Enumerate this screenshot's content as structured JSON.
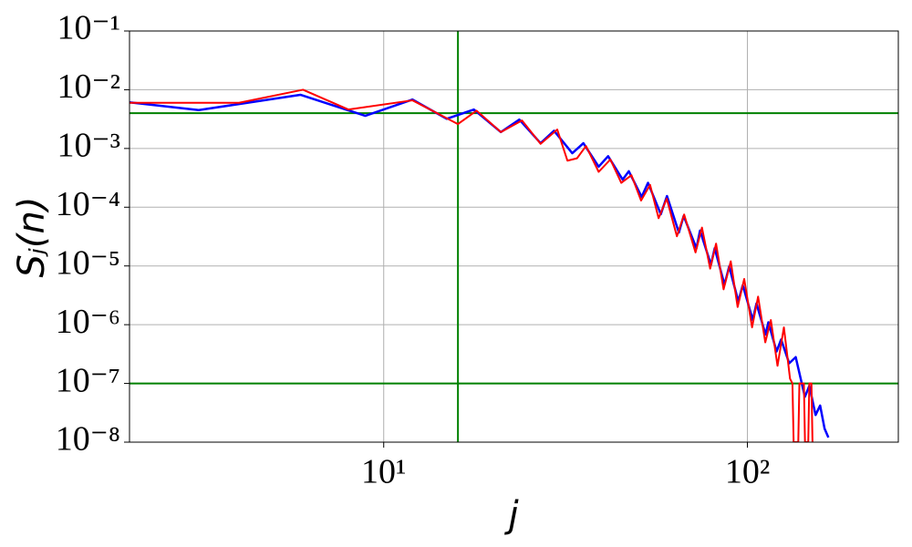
{
  "chart_data": {
    "type": "line",
    "xlabel": "j",
    "ylabel": "Sⱼ(n)",
    "xscale": "log",
    "yscale": "log",
    "grid": true,
    "xlim": [
      2,
      260
    ],
    "ylim": [
      1e-08,
      0.1
    ],
    "xticks": [
      {
        "value": 10,
        "label": "10¹"
      },
      {
        "value": 100,
        "label": "10²"
      }
    ],
    "yticks": [
      {
        "value": 1e-08,
        "label": "10⁻⁸"
      },
      {
        "value": 1e-07,
        "label": "10⁻⁷"
      },
      {
        "value": 1e-06,
        "label": "10⁻⁶"
      },
      {
        "value": 1e-05,
        "label": "10⁻⁵"
      },
      {
        "value": 0.0001,
        "label": "10⁻⁴"
      },
      {
        "value": 0.001,
        "label": "10⁻³"
      },
      {
        "value": 0.01,
        "label": "10⁻²"
      },
      {
        "value": 0.1,
        "label": "10⁻¹"
      }
    ],
    "reference_lines": {
      "color": "#008000",
      "y": [
        0.004,
        1e-07
      ],
      "x": [
        16
      ]
    },
    "series": [
      {
        "color": "#0000ff",
        "width": 2.5,
        "x": [
          2,
          3.1,
          5.9,
          8.9,
          12,
          14.9,
          17.7,
          21,
          23.6,
          27,
          29.4,
          33,
          35.4,
          39,
          41.4,
          45.4,
          47.2,
          51.2,
          53.3,
          57.8,
          60.1,
          64.8,
          66.8,
          72.4,
          74.1,
          79.4,
          81.3,
          86.5,
          89.1,
          94.4,
          97.1,
          103.5,
          105.9,
          112.2,
          114.2,
          120.3,
          123.8,
          130.3,
          135.8,
          143.9,
          148,
          154,
          158.5,
          163,
          167
        ],
        "values": [
          0.0061,
          0.0045,
          0.0082,
          0.0036,
          0.0068,
          0.0032,
          0.0046,
          0.0019,
          0.0031,
          0.00123,
          0.002,
          0.00083,
          0.00123,
          0.00049,
          0.00074,
          0.000295,
          0.00041,
          0.00015,
          0.00026,
          7.6e-05,
          0.000155,
          3.7e-05,
          7.1e-05,
          2e-05,
          4e-05,
          1.05e-05,
          2e-05,
          4.8e-06,
          9.8e-06,
          2.5e-06,
          4.7e-06,
          1.2e-06,
          2.3e-06,
          6.8e-07,
          1.1e-06,
          3.5e-07,
          5.6e-07,
          2.2e-07,
          2.8e-07,
          5.9e-08,
          9.1e-08,
          2.9e-08,
          4.2e-08,
          1.7e-08,
          1.2e-08
        ]
      },
      {
        "color": "#ff0000",
        "width": 2,
        "x": [
          2,
          4,
          6,
          8,
          12,
          16,
          18,
          21,
          24,
          27,
          30,
          32,
          34,
          36,
          39,
          42,
          45,
          48,
          51,
          54,
          57,
          60,
          64,
          67,
          72,
          75,
          79,
          82,
          86,
          90,
          94,
          98,
          103,
          107,
          112,
          116,
          121,
          126,
          131,
          133,
          134,
          138,
          139,
          143,
          144,
          147,
          148,
          150,
          151
        ],
        "values": [
          0.006,
          0.006,
          0.01,
          0.0046,
          0.0066,
          0.0026,
          0.0044,
          0.0019,
          0.003,
          0.0012,
          0.0021,
          0.00062,
          0.00068,
          0.0011,
          0.0004,
          0.00065,
          0.00026,
          0.00035,
          0.00013,
          0.00024,
          6.5e-05,
          0.00014,
          3.2e-05,
          7.5e-05,
          1.7e-05,
          4.5e-05,
          9e-06,
          2.4e-05,
          4e-06,
          1.2e-05,
          2e-06,
          6e-06,
          9e-07,
          3e-06,
          5e-07,
          1.2e-06,
          2e-07,
          9e-07,
          1.2e-07,
          1e-07,
          1e-08,
          1e-08,
          1e-07,
          1e-07,
          1e-08,
          1e-08,
          1e-07,
          1e-07,
          1e-08
        ]
      }
    ]
  }
}
